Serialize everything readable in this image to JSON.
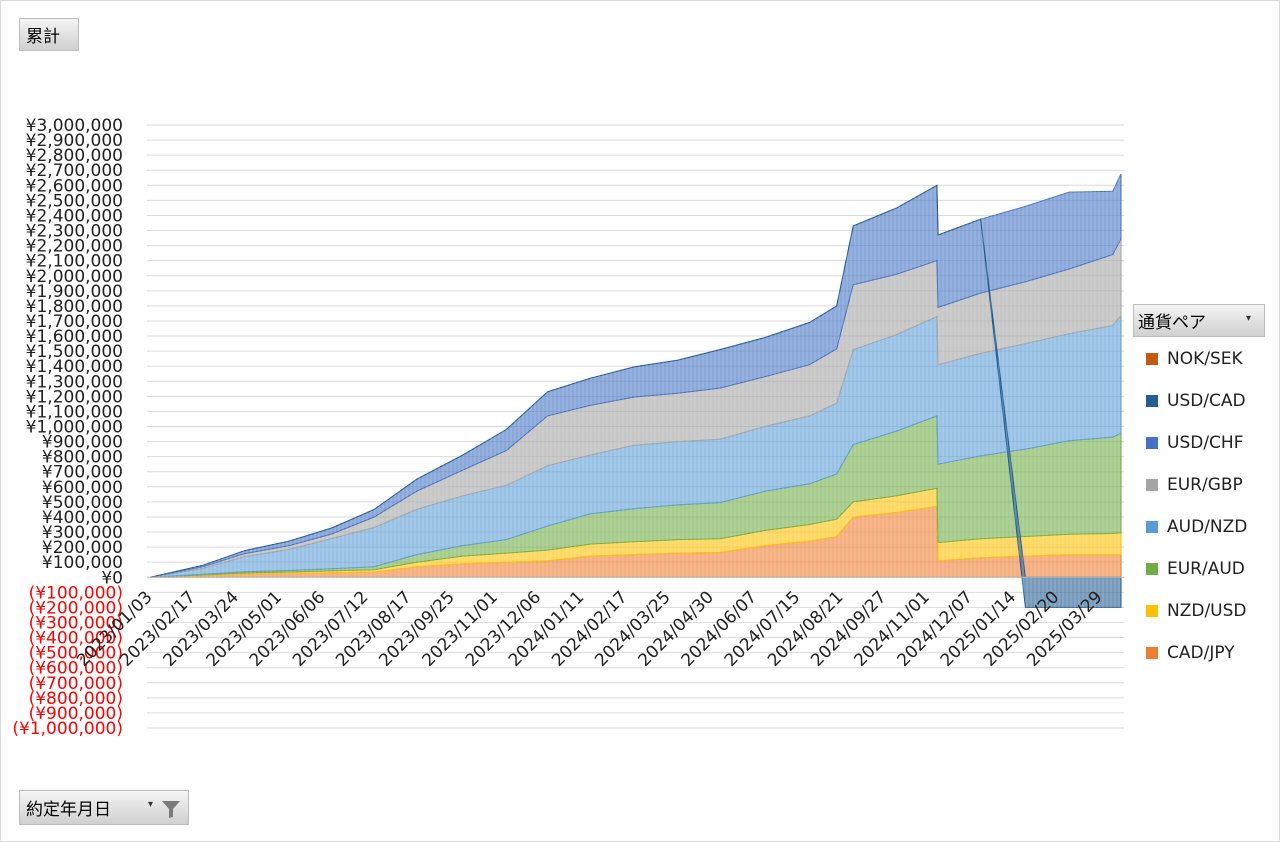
{
  "value_field": {
    "label": "累計"
  },
  "date_field": {
    "label": "約定年月日"
  },
  "legend": {
    "title": "通貨ペア",
    "items": [
      {
        "name": "NOK/SEK",
        "color": "#c55a11"
      },
      {
        "name": "USD/CAD",
        "color": "#255e91"
      },
      {
        "name": "USD/CHF",
        "color": "#4472c4"
      },
      {
        "name": "EUR/GBP",
        "color": "#a5a5a5"
      },
      {
        "name": "AUD/NZD",
        "color": "#5b9bd5"
      },
      {
        "name": "EUR/AUD",
        "color": "#70ad47"
      },
      {
        "name": "NZD/USD",
        "color": "#ffc000"
      },
      {
        "name": "CAD/JPY",
        "color": "#ed7d31"
      }
    ]
  },
  "chart_data": {
    "type": "area",
    "stacked": true,
    "ylim": [
      -1000000,
      3000000
    ],
    "grid": true,
    "legend_position": "right",
    "y_ticks": [
      "¥3,000,000",
      "¥2,900,000",
      "¥2,800,000",
      "¥2,700,000",
      "¥2,600,000",
      "¥2,500,000",
      "¥2,400,000",
      "¥2,300,000",
      "¥2,200,000",
      "¥2,100,000",
      "¥2,000,000",
      "¥1,900,000",
      "¥1,800,000",
      "¥1,700,000",
      "¥1,600,000",
      "¥1,500,000",
      "¥1,400,000",
      "¥1,300,000",
      "¥1,200,000",
      "¥1,100,000",
      "¥1,000,000",
      "¥900,000",
      "¥800,000",
      "¥700,000",
      "¥600,000",
      "¥500,000",
      "¥400,000",
      "¥300,000",
      "¥200,000",
      "¥100,000",
      "¥0",
      "(¥100,000)",
      "(¥200,000)",
      "(¥300,000)",
      "(¥400,000)",
      "(¥500,000)",
      "(¥600,000)",
      "(¥700,000)",
      "(¥800,000)",
      "(¥900,000)",
      "(¥1,000,000)"
    ],
    "x_tick_labels": [
      "2023/01/03",
      "2023/02/17",
      "2023/03/24",
      "2023/05/01",
      "2023/06/06",
      "2023/07/12",
      "2023/08/17",
      "2023/09/25",
      "2023/11/01",
      "2023/12/06",
      "2024/01/11",
      "2024/02/17",
      "2024/03/25",
      "2024/04/30",
      "2024/06/07",
      "2024/07/15",
      "2024/08/21",
      "2024/09/27",
      "2024/11/01",
      "2024/12/07",
      "2025/01/14",
      "2025/02/20",
      "2025/03/29"
    ],
    "dates": [
      "2023/01/03",
      "2023/02/17",
      "2023/03/24",
      "2023/05/01",
      "2023/06/06",
      "2023/07/12",
      "2023/08/17",
      "2023/09/25",
      "2023/11/01",
      "2023/12/06",
      "2024/01/11",
      "2024/02/17",
      "2024/03/25",
      "2024/04/30",
      "2024/06/07",
      "2024/07/15",
      "2024/08/07",
      "2024/08/21",
      "2024/09/27",
      "2024/10/31",
      "2024/11/01",
      "2024/12/07",
      "2025/01/14",
      "2025/02/20",
      "2025/03/29",
      "2025/04/05"
    ],
    "series": [
      {
        "name": "CAD/JPY",
        "values": [
          0,
          10000,
          20000,
          25000,
          30000,
          35000,
          70000,
          90000,
          100000,
          110000,
          140000,
          150000,
          160000,
          165000,
          210000,
          240000,
          270000,
          400000,
          430000,
          470000,
          110000,
          130000,
          140000,
          150000,
          150000,
          150000
        ]
      },
      {
        "name": "NZD/USD",
        "values": [
          0,
          5000,
          8000,
          10000,
          12000,
          15000,
          30000,
          50000,
          60000,
          70000,
          80000,
          85000,
          90000,
          90000,
          100000,
          110000,
          115000,
          100000,
          110000,
          120000,
          120000,
          125000,
          130000,
          135000,
          140000,
          145000
        ]
      },
      {
        "name": "EUR/AUD",
        "values": [
          0,
          5000,
          8000,
          10000,
          15000,
          20000,
          50000,
          70000,
          90000,
          160000,
          200000,
          220000,
          230000,
          240000,
          260000,
          270000,
          300000,
          380000,
          430000,
          480000,
          520000,
          550000,
          580000,
          620000,
          640000,
          660000
        ]
      },
      {
        "name": "AUD/NZD",
        "values": [
          0,
          40000,
          100000,
          140000,
          200000,
          260000,
          300000,
          330000,
          360000,
          400000,
          390000,
          420000,
          420000,
          420000,
          430000,
          450000,
          470000,
          630000,
          640000,
          660000,
          660000,
          680000,
          700000,
          710000,
          740000,
          780000
        ]
      },
      {
        "name": "EUR/GBP",
        "values": [
          0,
          10000,
          20000,
          25000,
          30000,
          70000,
          120000,
          170000,
          230000,
          330000,
          330000,
          320000,
          320000,
          340000,
          330000,
          340000,
          360000,
          430000,
          400000,
          370000,
          380000,
          400000,
          410000,
          430000,
          470000,
          510000
        ]
      },
      {
        "name": "USD/CHF",
        "values": [
          0,
          10000,
          20000,
          30000,
          40000,
          50000,
          80000,
          100000,
          140000,
          160000,
          180000,
          200000,
          220000,
          255000,
          260000,
          280000,
          285000,
          390000,
          440000,
          500000,
          480000,
          490000,
          500000,
          510000,
          420000,
          430000
        ]
      },
      {
        "name": "USD/CAD",
        "values": [
          0,
          0,
          0,
          0,
          0,
          0,
          0,
          0,
          0,
          0,
          0,
          0,
          0,
          0,
          0,
          0,
          0,
          0,
          0,
          0,
          0,
          0,
          -200000,
          -200000,
          -200000,
          -200000
        ]
      },
      {
        "name": "NOK/SEK",
        "values": [
          0,
          0,
          0,
          0,
          0,
          0,
          0,
          0,
          0,
          0,
          0,
          0,
          0,
          0,
          0,
          0,
          0,
          0,
          0,
          0,
          0,
          0,
          0,
          0,
          0,
          0
        ]
      }
    ]
  }
}
